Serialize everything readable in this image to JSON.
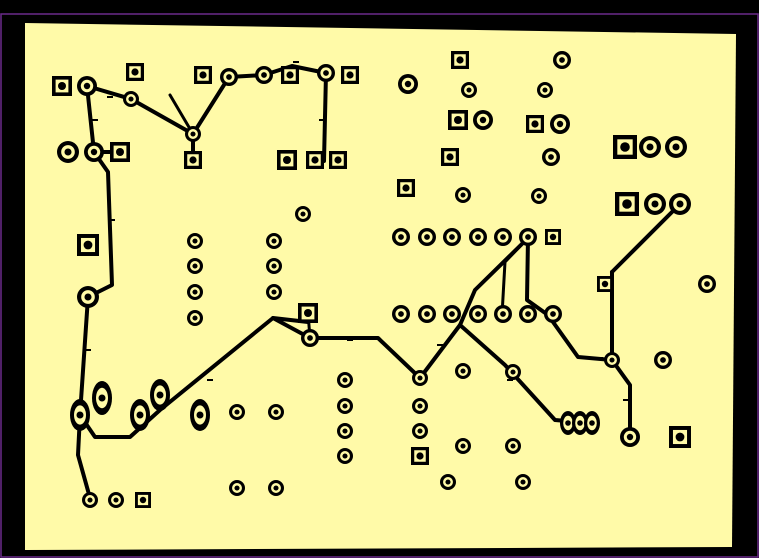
{
  "colors": {
    "background": "#000000",
    "board": "#fffaa8",
    "copper": "#000000",
    "outline": "#6a2a8a"
  },
  "board": {
    "title": "",
    "description_kind": "single-layer PCB bottom copper artwork"
  }
}
